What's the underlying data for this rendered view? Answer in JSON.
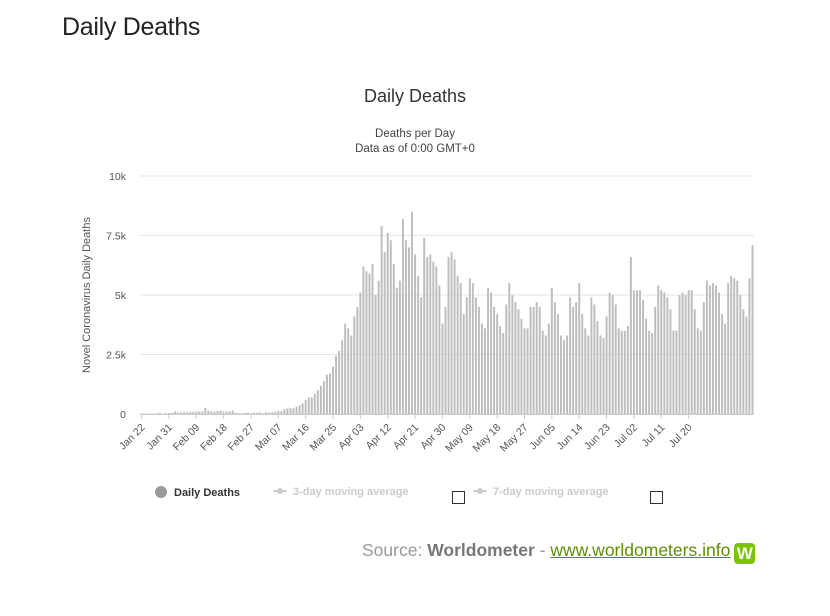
{
  "page_heading": "Daily Deaths",
  "legend": {
    "items": [
      {
        "label": "Daily Deaths",
        "active": true
      },
      {
        "label": "3-day moving average",
        "active": false
      },
      {
        "label": "7-day moving average",
        "active": false
      }
    ]
  },
  "source": {
    "prefix": "Source:",
    "name": "Worldometer",
    "sep": "-",
    "link_text": "www.worldometers.info",
    "logo_letter": "W"
  },
  "colors": {
    "bar": "#bdbdbd",
    "grid": "#e6e6e6",
    "axis": "#cccccc",
    "legend_dot": "#999999",
    "logo": "#7cc300",
    "link": "#5b8f00"
  },
  "chart_data": {
    "type": "bar",
    "title": "Daily Deaths",
    "subtitle": [
      "Deaths per Day",
      "Data as of 0:00 GMT+0"
    ],
    "ylabel": "Novel Coronavirus Daily Deaths",
    "xlabel": "",
    "ylim": [
      0,
      10000
    ],
    "y_ticks": [
      0,
      2500,
      5000,
      7500,
      10000
    ],
    "y_tick_labels": [
      "0",
      "2.5k",
      "5k",
      "7.5k",
      "10k"
    ],
    "x_tick_labels": [
      "Jan 22",
      "Jan 31",
      "Feb 09",
      "Feb 18",
      "Feb 27",
      "Mar 07",
      "Mar 16",
      "Mar 25",
      "Apr 03",
      "Apr 12",
      "Apr 21",
      "Apr 30",
      "May 09",
      "May 18",
      "May 27",
      "Jun 05",
      "Jun 14",
      "Jun 23",
      "Jul 02",
      "Jul 11",
      "Jul 20"
    ],
    "x_tick_every": 9,
    "first_date": "Jan 22",
    "grid": true,
    "legend_position": "bottom",
    "series": [
      {
        "name": "Daily Deaths",
        "values": [
          17,
          0,
          8,
          16,
          14,
          26,
          49,
          2,
          38,
          42,
          46,
          103,
          64,
          66,
          72,
          70,
          85,
          87,
          100,
          108,
          97,
          254,
          143,
          106,
          98,
          136,
          143,
          100,
          97,
          113,
          150,
          57,
          35,
          29,
          43,
          56,
          28,
          58,
          55,
          70,
          32,
          69,
          59,
          69,
          90,
          120,
          117,
          203,
          229,
          257,
          240,
          310,
          370,
          450,
          580,
          700,
          700,
          850,
          1000,
          1180,
          1380,
          1650,
          1700,
          1990,
          2450,
          2660,
          3100,
          3800,
          3600,
          3300,
          4100,
          4500,
          5100,
          6200,
          6000,
          5900,
          6300,
          5000,
          5600,
          7900,
          6800,
          7600,
          7300,
          6300,
          5300,
          5600,
          8200,
          7300,
          7000,
          8500,
          6700,
          5800,
          4900,
          7400,
          6600,
          6700,
          6400,
          6200,
          5400,
          3800,
          4500,
          6600,
          6800,
          6500,
          5800,
          5500,
          4200,
          4900,
          5700,
          5500,
          4900,
          4500,
          3800,
          3600,
          5300,
          5100,
          4500,
          4200,
          3700,
          3400,
          4600,
          5500,
          5000,
          4700,
          4400,
          4000,
          3600,
          3600,
          4500,
          4500,
          4700,
          4500,
          3500,
          3300,
          3800,
          5300,
          4700,
          4200,
          3300,
          3100,
          3300,
          4900,
          4500,
          4700,
          5500,
          4200,
          3600,
          3300,
          4900,
          4600,
          3900,
          3300,
          3200,
          4100,
          5100,
          5000,
          4600,
          3600,
          3500,
          3500,
          3700,
          6600,
          5200,
          5200,
          5200,
          4800,
          4000,
          3500,
          3400,
          4500,
          5400,
          5200,
          5100,
          4900,
          4400,
          3500,
          3500,
          5000,
          5100,
          5000,
          5200,
          5200,
          4400,
          3600,
          3500,
          4700,
          5600,
          5400,
          5500,
          5400,
          5100,
          4200,
          3800,
          5500,
          5800,
          5700,
          5600,
          5000,
          4400,
          4100,
          5700,
          7100
        ]
      }
    ]
  }
}
